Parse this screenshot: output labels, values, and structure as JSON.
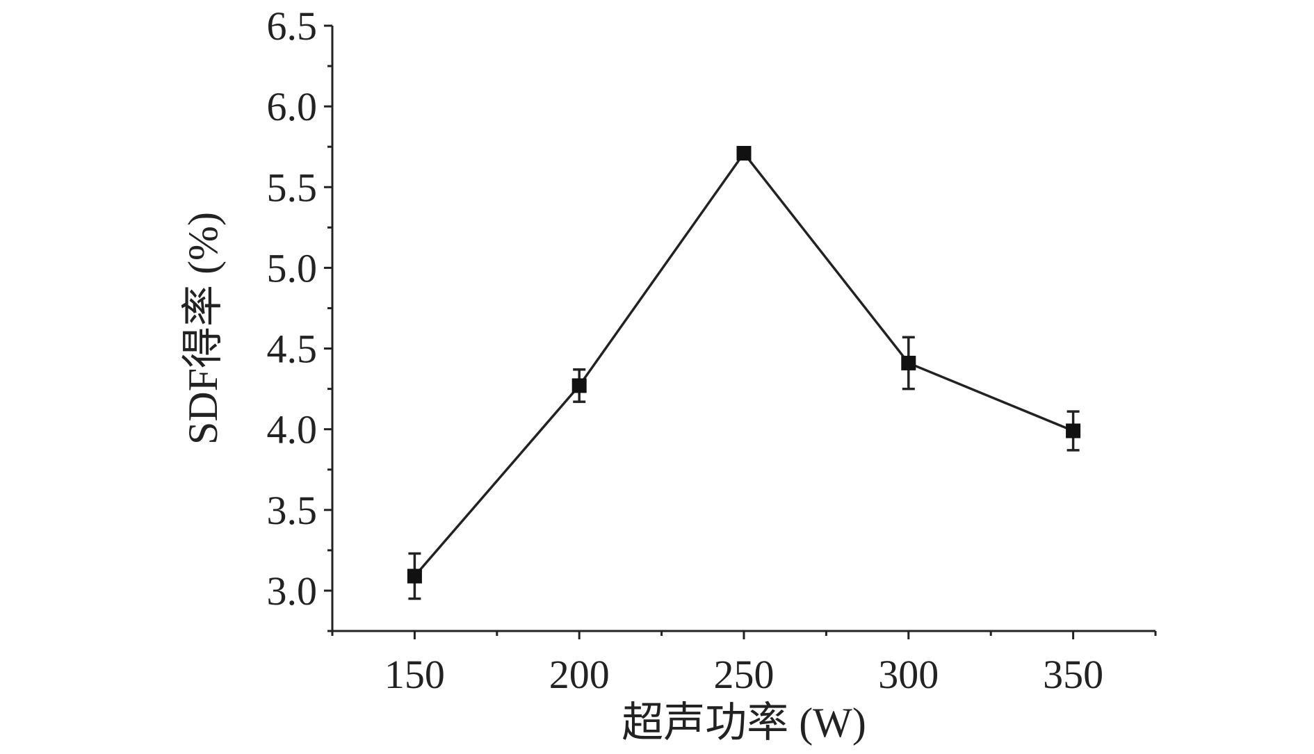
{
  "chart_data": {
    "type": "line",
    "title": "",
    "xlabel": "超声功率 (W)",
    "ylabel": "SDF得率 (%)",
    "x": [
      150,
      200,
      250,
      300,
      350
    ],
    "xticks": [
      "150",
      "200",
      "250",
      "300",
      "350"
    ],
    "xlim": [
      125,
      375
    ],
    "ylim": [
      2.75,
      6.5
    ],
    "yticks": [
      "3.0",
      "3.5",
      "4.0",
      "4.5",
      "5.0",
      "5.5",
      "6.0",
      "6.5"
    ],
    "series": [
      {
        "values": [
          3.09,
          4.27,
          5.71,
          4.41,
          3.99
        ],
        "error": [
          0.14,
          0.1,
          0.03,
          0.16,
          0.12
        ],
        "marker": "square",
        "color": "#111111"
      }
    ],
    "grid": false,
    "legend": "none"
  }
}
